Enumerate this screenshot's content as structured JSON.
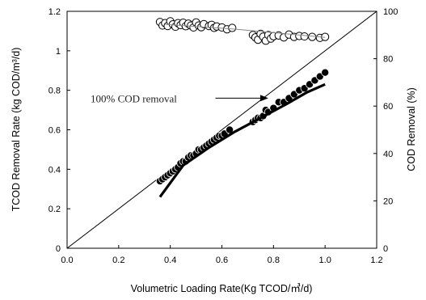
{
  "chart_data": {
    "type": "scatter",
    "xlabel": "Volumetric Loading Rate(Kg TCOD/㎥/d)",
    "ylabel_left": "TCOD Removal Rate (kg COD/m³/d)",
    "ylabel_right": "COD Removal (%)",
    "xlim": [
      0.0,
      1.2
    ],
    "ylim_left": [
      0,
      1.2
    ],
    "ylim_right": [
      0,
      100
    ],
    "x_ticks": [
      "0.0",
      "0.2",
      "0.4",
      "0.6",
      "0.8",
      "1.0",
      "1.2"
    ],
    "y_left_ticks": [
      "0",
      "0.2",
      "0.4",
      "0.6",
      "0.8",
      "1",
      "1.2"
    ],
    "y_right_ticks": [
      "0",
      "20",
      "40",
      "60",
      "80",
      "100"
    ],
    "grid": false,
    "annotation": {
      "text": "100% COD removal",
      "start": [
        0.6,
        0.76
      ],
      "end": [
        0.78,
        0.76
      ]
    },
    "reference_line": {
      "x": [
        0.0,
        1.2
      ],
      "y": [
        0.0,
        1.2
      ]
    },
    "series": [
      {
        "axis": "left",
        "marker": "filled-circle",
        "color": "#000000",
        "points": [
          [
            0.36,
            0.34
          ],
          [
            0.37,
            0.35
          ],
          [
            0.38,
            0.36
          ],
          [
            0.39,
            0.37
          ],
          [
            0.4,
            0.38
          ],
          [
            0.41,
            0.39
          ],
          [
            0.42,
            0.4
          ],
          [
            0.43,
            0.41
          ],
          [
            0.44,
            0.43
          ],
          [
            0.45,
            0.44
          ],
          [
            0.46,
            0.44
          ],
          [
            0.47,
            0.46
          ],
          [
            0.48,
            0.47
          ],
          [
            0.49,
            0.47
          ],
          [
            0.5,
            0.48
          ],
          [
            0.51,
            0.5
          ],
          [
            0.52,
            0.5
          ],
          [
            0.53,
            0.51
          ],
          [
            0.54,
            0.52
          ],
          [
            0.55,
            0.53
          ],
          [
            0.56,
            0.54
          ],
          [
            0.57,
            0.55
          ],
          [
            0.58,
            0.56
          ],
          [
            0.59,
            0.57
          ],
          [
            0.6,
            0.57
          ],
          [
            0.61,
            0.58
          ],
          [
            0.63,
            0.6
          ],
          [
            0.72,
            0.64
          ],
          [
            0.73,
            0.65
          ],
          [
            0.74,
            0.66
          ],
          [
            0.75,
            0.66
          ],
          [
            0.76,
            0.67
          ],
          [
            0.77,
            0.7
          ],
          [
            0.78,
            0.69
          ],
          [
            0.8,
            0.71
          ],
          [
            0.82,
            0.74
          ],
          [
            0.84,
            0.74
          ],
          [
            0.86,
            0.76
          ],
          [
            0.88,
            0.78
          ],
          [
            0.9,
            0.8
          ],
          [
            0.92,
            0.81
          ],
          [
            0.94,
            0.83
          ],
          [
            0.96,
            0.85
          ],
          [
            0.98,
            0.87
          ],
          [
            1.0,
            0.89
          ]
        ]
      },
      {
        "axis": "left",
        "marker": "fit-line",
        "color": "#000000",
        "x": [
          0.36,
          0.45,
          0.55,
          0.65,
          0.75,
          0.85,
          0.93,
          1.0
        ],
        "values": [
          0.26,
          0.42,
          0.51,
          0.59,
          0.66,
          0.73,
          0.79,
          0.83
        ]
      },
      {
        "axis": "right",
        "marker": "open-circle",
        "color": "#000000",
        "points": [
          [
            0.36,
            95.5
          ],
          [
            0.37,
            94.0
          ],
          [
            0.38,
            95.0
          ],
          [
            0.39,
            93.8
          ],
          [
            0.4,
            95.8
          ],
          [
            0.41,
            94.5
          ],
          [
            0.42,
            93.5
          ],
          [
            0.43,
            95.0
          ],
          [
            0.44,
            94.2
          ],
          [
            0.45,
            95.2
          ],
          [
            0.46,
            93.7
          ],
          [
            0.47,
            94.8
          ],
          [
            0.48,
            94.0
          ],
          [
            0.49,
            93.2
          ],
          [
            0.5,
            95.3
          ],
          [
            0.51,
            94.0
          ],
          [
            0.52,
            93.3
          ],
          [
            0.53,
            94.6
          ],
          [
            0.55,
            93.8
          ],
          [
            0.56,
            94.3
          ],
          [
            0.57,
            93.0
          ],
          [
            0.58,
            93.6
          ],
          [
            0.6,
            93.2
          ],
          [
            0.62,
            92.4
          ],
          [
            0.64,
            93.0
          ],
          [
            0.72,
            90.0
          ],
          [
            0.73,
            89.0
          ],
          [
            0.74,
            88.0
          ],
          [
            0.75,
            90.5
          ],
          [
            0.76,
            89.3
          ],
          [
            0.77,
            87.6
          ],
          [
            0.78,
            90.0
          ],
          [
            0.79,
            88.5
          ],
          [
            0.8,
            89.5
          ],
          [
            0.82,
            89.8
          ],
          [
            0.84,
            89.0
          ],
          [
            0.86,
            90.2
          ],
          [
            0.88,
            89.2
          ],
          [
            0.9,
            89.6
          ],
          [
            0.92,
            89.4
          ],
          [
            0.95,
            89.2
          ],
          [
            0.98,
            88.8
          ],
          [
            1.0,
            89.2
          ]
        ]
      },
      {
        "axis": "right",
        "marker": "trend-line",
        "color": "#888888",
        "x": [
          0.38,
          0.65,
          1.0
        ],
        "values": [
          94.5,
          92.5,
          89.0
        ]
      }
    ]
  }
}
